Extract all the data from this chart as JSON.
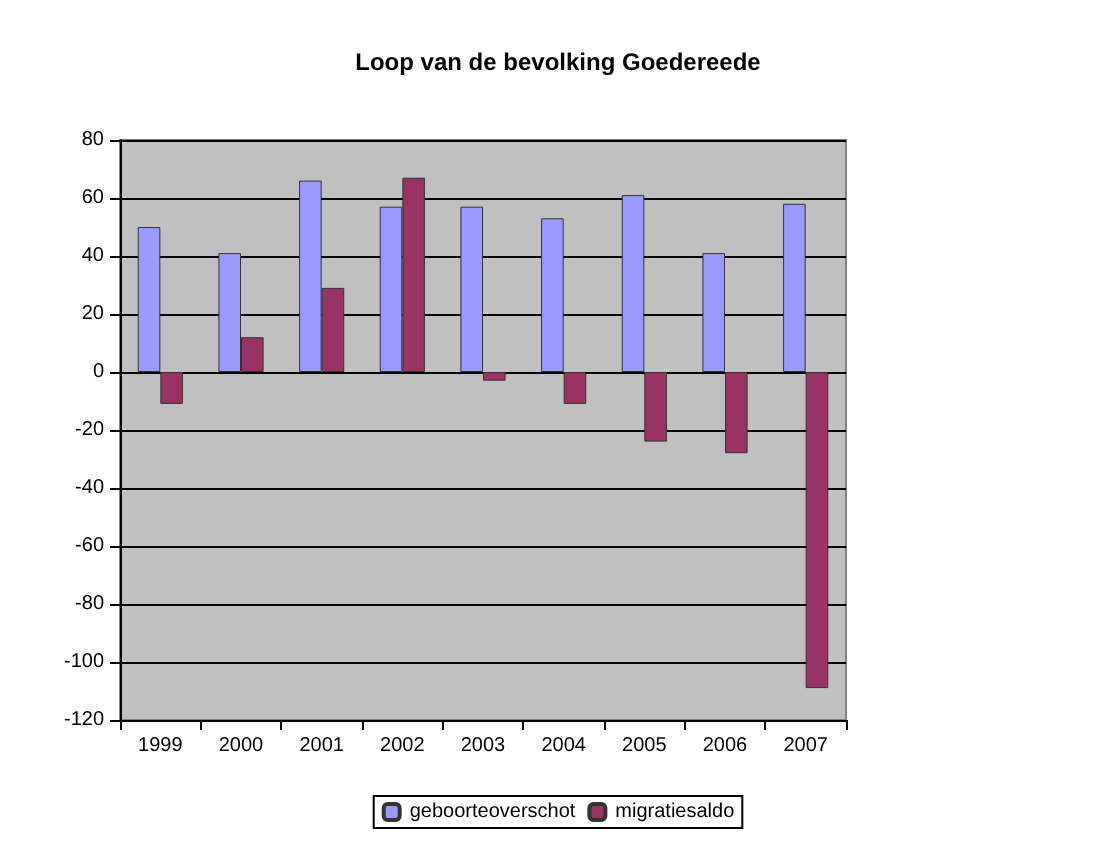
{
  "chart_data": {
    "type": "bar",
    "title": "Loop van de bevolking Goedereede",
    "categories": [
      "1999",
      "2000",
      "2001",
      "2002",
      "2003",
      "2004",
      "2005",
      "2006",
      "2007"
    ],
    "series": [
      {
        "name": "geboorteoverschot",
        "color": "#9999ff",
        "values": [
          50,
          41,
          66,
          57,
          57,
          53,
          61,
          41,
          58
        ]
      },
      {
        "name": "migratiesaldo",
        "color": "#993366",
        "values": [
          -11,
          12,
          29,
          67,
          -3,
          -11,
          -24,
          -28,
          -109
        ]
      }
    ],
    "ylim": [
      -120,
      80
    ],
    "yticks": [
      -120,
      -100,
      -80,
      -60,
      -40,
      -20,
      0,
      20,
      40,
      60,
      80
    ],
    "grid": "y",
    "legend": "bottom"
  }
}
